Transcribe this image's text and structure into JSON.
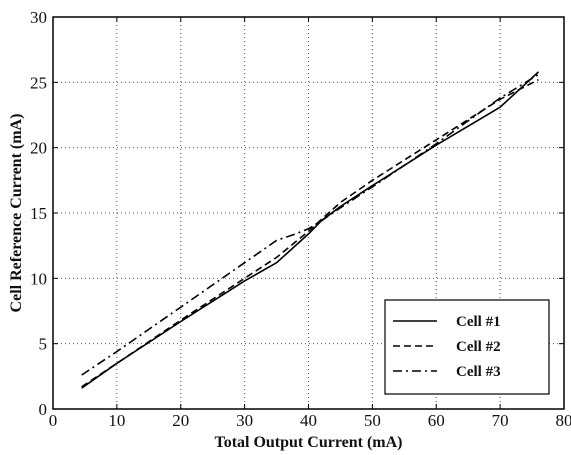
{
  "chart_data": {
    "type": "line",
    "title": "",
    "xlabel": "Total Output Current (mA)",
    "ylabel": "Cell Reference Current (mA)",
    "xlim": [
      0,
      80
    ],
    "ylim": [
      0,
      30
    ],
    "xticks": [
      0,
      10,
      20,
      30,
      40,
      50,
      60,
      70,
      80
    ],
    "yticks": [
      0,
      5,
      10,
      15,
      20,
      25,
      30
    ],
    "grid": true,
    "legend_position": "bottom-right",
    "series": [
      {
        "name": "Cell #1",
        "line_style": "solid",
        "x": [
          4.5,
          10,
          20,
          30,
          35,
          40,
          42,
          45,
          50,
          60,
          70,
          76
        ],
        "y": [
          1.6,
          3.5,
          6.7,
          9.8,
          11.2,
          13.4,
          14.4,
          15.5,
          17.1,
          20.2,
          23.1,
          25.8
        ]
      },
      {
        "name": "Cell #2",
        "line_style": "dashed",
        "x": [
          4.5,
          10,
          20,
          30,
          35,
          40,
          42,
          45,
          50,
          60,
          70,
          76
        ],
        "y": [
          1.7,
          3.5,
          6.8,
          10.0,
          11.6,
          13.6,
          14.5,
          15.8,
          17.5,
          20.6,
          23.7,
          25.2
        ]
      },
      {
        "name": "Cell #3",
        "line_style": "dashdot",
        "x": [
          4.5,
          10,
          20,
          30,
          35,
          38,
          40,
          42,
          45,
          50,
          60,
          70,
          76
        ],
        "y": [
          2.6,
          4.4,
          7.8,
          11.2,
          12.9,
          13.4,
          13.8,
          14.4,
          15.4,
          17.0,
          20.3,
          23.8,
          25.6
        ]
      }
    ]
  }
}
